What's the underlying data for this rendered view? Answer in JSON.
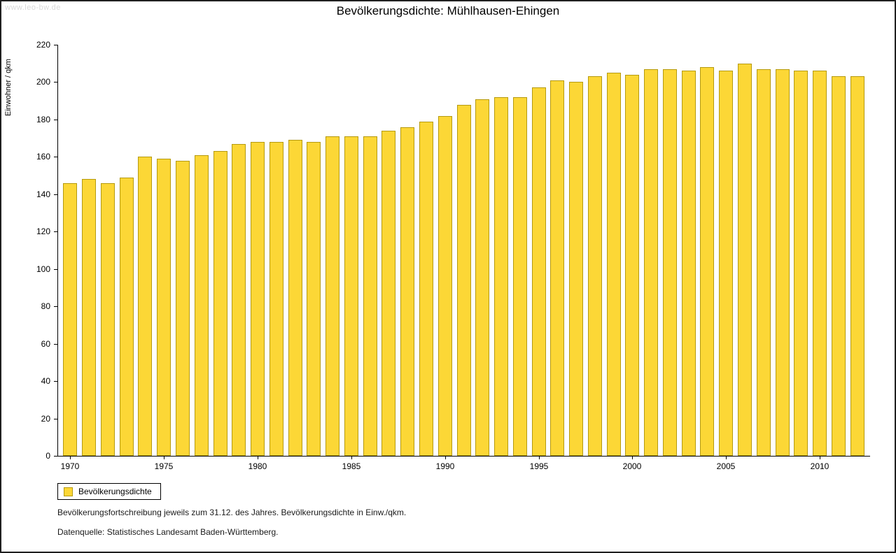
{
  "page": {
    "watermark": "www.leo-bw.de",
    "title": "Bevölkerungsdichte: Mühlhausen-Ehingen",
    "legend_label": "Bevölkerungsdichte",
    "footnote1": "Bevölkerungsfortschreibung jeweils zum 31.12. des Jahres. Bevölkerungsdichte in Einw./qkm.",
    "footnote2": "Datenquelle: Statistisches Landesamt Baden-Württemberg."
  },
  "chart_data": {
    "type": "bar",
    "title": "Bevölkerungsdichte: Mühlhausen-Ehingen",
    "xlabel": "",
    "ylabel": "Einwohner / qkm",
    "ylim": [
      0,
      220
    ],
    "ytick_step": 20,
    "xtick_every_years": 5,
    "grid": false,
    "legend_position": "bottom-left",
    "legend_entries": [
      "Bevölkerungsdichte"
    ],
    "bar_color": "#fcd736",
    "bar_border_color": "#b59a10",
    "categories": [
      1970,
      1971,
      1972,
      1973,
      1974,
      1975,
      1976,
      1977,
      1978,
      1979,
      1980,
      1981,
      1982,
      1983,
      1984,
      1985,
      1986,
      1987,
      1988,
      1989,
      1990,
      1991,
      1992,
      1993,
      1994,
      1995,
      1996,
      1997,
      1998,
      1999,
      2000,
      2001,
      2002,
      2003,
      2004,
      2005,
      2006,
      2007,
      2008,
      2009,
      2010,
      2011,
      2012
    ],
    "values": [
      146,
      148,
      146,
      149,
      160,
      159,
      158,
      161,
      163,
      167,
      168,
      168,
      169,
      168,
      171,
      171,
      171,
      174,
      176,
      179,
      182,
      188,
      191,
      192,
      192,
      197,
      201,
      200,
      203,
      205,
      204,
      207,
      207,
      206,
      208,
      206,
      210,
      207,
      207,
      206,
      206,
      203,
      203
    ]
  }
}
